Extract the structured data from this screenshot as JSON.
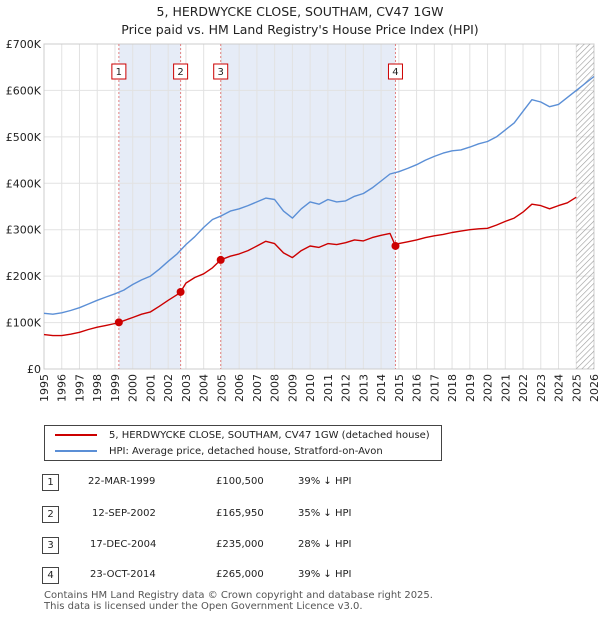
{
  "title": "5, HERDWYCKE CLOSE, SOUTHAM, CV47 1GW",
  "subtitle": "Price paid vs. HM Land Registry's House Price Index (HPI)",
  "chart_data": {
    "type": "line",
    "title": "5, HERDWYCKE CLOSE, SOUTHAM, CV47 1GW",
    "subtitle": "Price paid vs. HM Land Registry's House Price Index (HPI)",
    "xlabel": "",
    "ylabel": "",
    "xlim": [
      1995,
      2026
    ],
    "ylim": [
      0,
      700000
    ],
    "yticks": [
      0,
      100000,
      200000,
      300000,
      400000,
      500000,
      600000,
      700000
    ],
    "ytick_labels": [
      "£0",
      "£100K",
      "£200K",
      "£300K",
      "£400K",
      "£500K",
      "£600K",
      "£700K"
    ],
    "xticks": [
      1995,
      1996,
      1997,
      1998,
      1999,
      2000,
      2001,
      2002,
      2003,
      2004,
      2005,
      2006,
      2007,
      2008,
      2009,
      2010,
      2011,
      2012,
      2013,
      2014,
      2015,
      2016,
      2017,
      2018,
      2019,
      2020,
      2021,
      2022,
      2023,
      2024,
      2025,
      2026
    ],
    "grid": true,
    "forecast_from": 2025.0,
    "series": [
      {
        "name": "5, HERDWYCKE CLOSE, SOUTHAM, CV47 1GW (detached house)",
        "color": "#cc0000",
        "x": [
          1995.0,
          1995.5,
          1996.0,
          1996.5,
          1997.0,
          1997.5,
          1998.0,
          1998.5,
          1999.0,
          1999.22,
          1999.5,
          2000.0,
          2000.5,
          2001.0,
          2001.5,
          2002.0,
          2002.5,
          2002.7,
          2003.0,
          2003.5,
          2004.0,
          2004.5,
          2004.96,
          2005.5,
          2006.0,
          2006.5,
          2007.0,
          2007.5,
          2008.0,
          2008.5,
          2009.0,
          2009.5,
          2010.0,
          2010.5,
          2011.0,
          2011.5,
          2012.0,
          2012.5,
          2013.0,
          2013.5,
          2014.0,
          2014.5,
          2014.81,
          2015.0,
          2015.5,
          2016.0,
          2016.5,
          2017.0,
          2017.5,
          2018.0,
          2018.5,
          2019.0,
          2019.5,
          2020.0,
          2020.5,
          2021.0,
          2021.5,
          2022.0,
          2022.5,
          2023.0,
          2023.5,
          2024.0,
          2024.5,
          2025.0
        ],
        "values": [
          74000,
          72000,
          72000,
          75000,
          79000,
          85000,
          90000,
          94000,
          98000,
          100500,
          104000,
          111000,
          118000,
          123000,
          135000,
          148000,
          160000,
          165950,
          185000,
          197000,
          205000,
          218000,
          235000,
          243000,
          248000,
          255000,
          265000,
          275000,
          270000,
          250000,
          240000,
          255000,
          265000,
          262000,
          270000,
          268000,
          272000,
          278000,
          276000,
          283000,
          288000,
          292000,
          265000,
          270000,
          274000,
          278000,
          283000,
          287000,
          290000,
          294000,
          297000,
          300000,
          302000,
          303000,
          310000,
          318000,
          325000,
          338000,
          355000,
          352000,
          345000,
          352000,
          358000,
          370000
        ]
      },
      {
        "name": "HPI: Average price, detached house, Stratford-on-Avon",
        "color": "#5b8fd6",
        "x": [
          1995.0,
          1995.5,
          1996.0,
          1996.5,
          1997.0,
          1997.5,
          1998.0,
          1998.5,
          1999.0,
          1999.5,
          2000.0,
          2000.5,
          2001.0,
          2001.5,
          2002.0,
          2002.5,
          2003.0,
          2003.5,
          2004.0,
          2004.5,
          2005.0,
          2005.5,
          2006.0,
          2006.5,
          2007.0,
          2007.5,
          2008.0,
          2008.5,
          2009.0,
          2009.5,
          2010.0,
          2010.5,
          2011.0,
          2011.5,
          2012.0,
          2012.5,
          2013.0,
          2013.5,
          2014.0,
          2014.5,
          2015.0,
          2015.5,
          2016.0,
          2016.5,
          2017.0,
          2017.5,
          2018.0,
          2018.5,
          2019.0,
          2019.5,
          2020.0,
          2020.5,
          2021.0,
          2021.5,
          2022.0,
          2022.5,
          2023.0,
          2023.5,
          2024.0,
          2024.5,
          2025.0,
          2025.5,
          2026.0
        ],
        "values": [
          120000,
          118000,
          121000,
          126000,
          132000,
          140000,
          148000,
          155000,
          162000,
          170000,
          182000,
          192000,
          200000,
          215000,
          232000,
          248000,
          268000,
          285000,
          305000,
          322000,
          330000,
          340000,
          345000,
          352000,
          360000,
          368000,
          365000,
          340000,
          325000,
          345000,
          360000,
          355000,
          365000,
          360000,
          362000,
          372000,
          378000,
          390000,
          405000,
          420000,
          425000,
          432000,
          440000,
          450000,
          458000,
          465000,
          470000,
          472000,
          478000,
          485000,
          490000,
          500000,
          515000,
          530000,
          555000,
          580000,
          575000,
          565000,
          570000,
          585000,
          600000,
          615000,
          630000
        ]
      }
    ],
    "sales": [
      {
        "label": "1",
        "date": "22-MAR-1999",
        "x": 1999.22,
        "price": 100500
      },
      {
        "label": "2",
        "date": "12-SEP-2002",
        "x": 2002.7,
        "price": 165950
      },
      {
        "label": "3",
        "date": "17-DEC-2004",
        "x": 2004.96,
        "price": 235000
      },
      {
        "label": "4",
        "date": "23-OCT-2014",
        "x": 2014.81,
        "price": 265000
      }
    ],
    "shaded_periods": [
      [
        1999.22,
        2002.7
      ],
      [
        2004.96,
        2014.81
      ]
    ]
  },
  "legend": [
    {
      "label": "5, HERDWYCKE CLOSE, SOUTHAM, CV47 1GW (detached house)",
      "color": "#cc0000"
    },
    {
      "label": "HPI: Average price, detached house, Stratford-on-Avon",
      "color": "#5b8fd6"
    }
  ],
  "transactions": [
    {
      "num": "1",
      "date": "22-MAR-1999",
      "price": "£100,500",
      "hpi": "39% ↓ HPI"
    },
    {
      "num": "2",
      "date": "12-SEP-2002",
      "price": "£165,950",
      "hpi": "35% ↓ HPI"
    },
    {
      "num": "3",
      "date": "17-DEC-2004",
      "price": "£235,000",
      "hpi": "28% ↓ HPI"
    },
    {
      "num": "4",
      "date": "23-OCT-2014",
      "price": "£265,000",
      "hpi": "39% ↓ HPI"
    }
  ],
  "footer": {
    "line1": "Contains HM Land Registry data © Crown copyright and database right 2025.",
    "line2": "This data is licensed under the Open Government Licence v3.0."
  }
}
